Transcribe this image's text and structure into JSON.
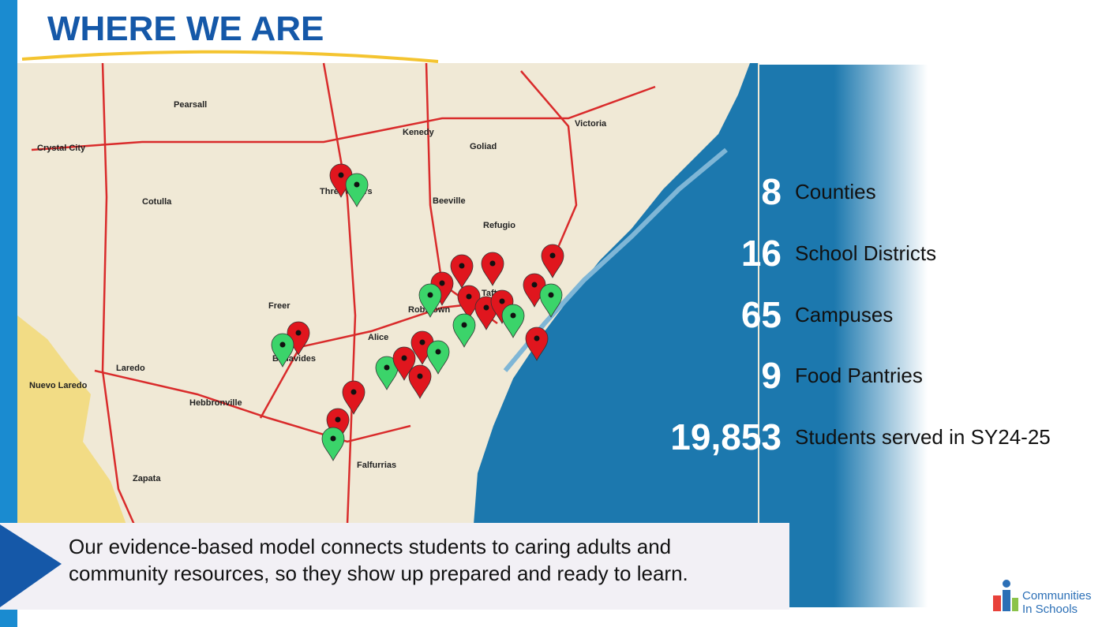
{
  "title": "WHERE WE ARE",
  "stats": [
    {
      "value": "8",
      "label": "Counties"
    },
    {
      "value": "16",
      "label": "School Districts"
    },
    {
      "value": "65",
      "label": "Campuses"
    },
    {
      "value": "9",
      "label": "Food Pantries"
    },
    {
      "value": "19,853",
      "label": "Students served in SY24-25"
    }
  ],
  "description": "Our evidence-based model connects students to caring adults and community resources, so they show up prepared and ready to learn.",
  "logo": {
    "line1": "Communities",
    "line2": "In Schools"
  },
  "map_labels": [
    "Crystal City",
    "Pearsall",
    "Cotulla",
    "Laredo",
    "Nuevo Laredo",
    "Freer",
    "Alice",
    "Hebbronville",
    "Falfurrias",
    "Zapata",
    "Beeville",
    "Refugio",
    "Victoria",
    "Robstown",
    "Taft",
    "Benavides",
    "Three Rivers",
    "Kenedy",
    "Goliad"
  ]
}
